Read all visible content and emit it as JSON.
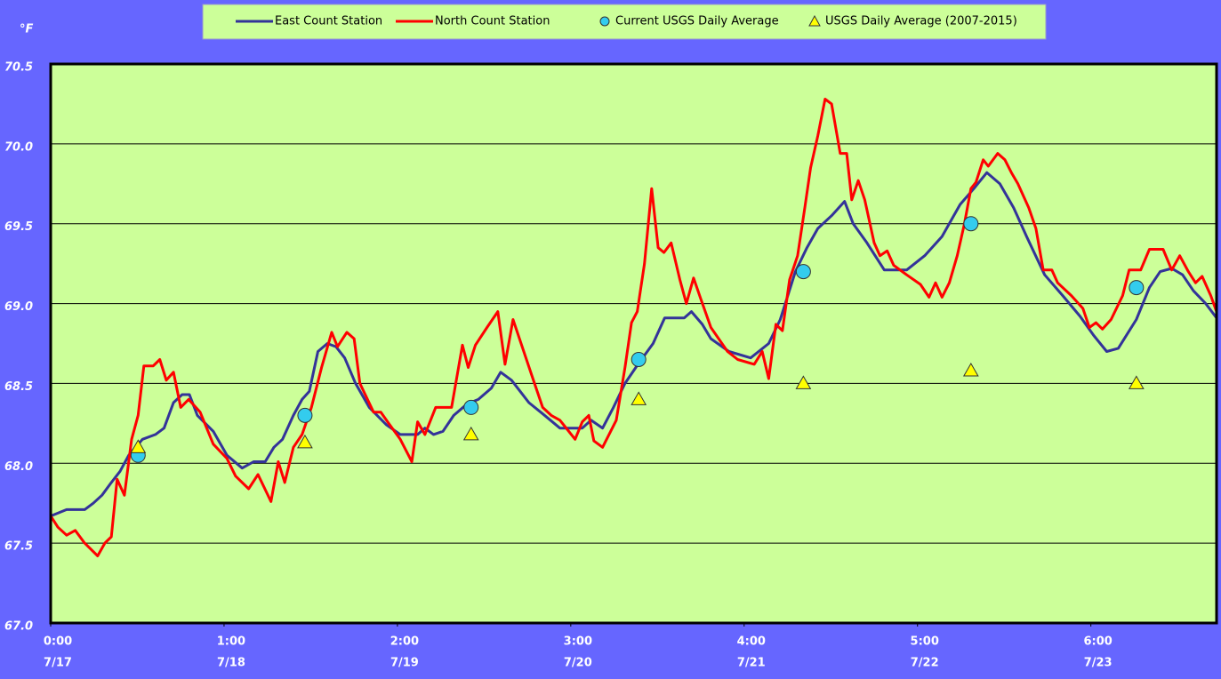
{
  "chart_data": {
    "type": "line",
    "y_unit": "°F",
    "xlim": [
      0,
      161.4
    ],
    "ylim": [
      67.0,
      70.5
    ],
    "yticks": [
      {
        "value": 67.0,
        "label": "67.0"
      },
      67.5,
      {
        "value": 68.0,
        "label": "68.0"
      },
      68.5,
      {
        "value": 69.0,
        "label": "69.0"
      },
      69.5,
      {
        "value": 70.0,
        "label": "70.0"
      },
      70.5
    ],
    "xticks": [
      {
        "value": 0,
        "label": "0:00"
      },
      {
        "value": 24,
        "label": "1:00"
      },
      {
        "value": 48,
        "label": "2:00"
      },
      {
        "value": 72,
        "label": "3:00"
      },
      {
        "value": 96,
        "label": "4:00"
      },
      {
        "value": 120,
        "label": "5:00"
      },
      {
        "value": 144,
        "label": "6:00"
      }
    ],
    "xtick_dates": [
      "7/17",
      "7/18",
      "7/19",
      "7/20",
      "7/21",
      "7/22",
      "7/23"
    ],
    "grid": true,
    "legend": "top",
    "series": [
      {
        "name": "East Count Station",
        "color": "#333399",
        "type": "line",
        "x": [
          0,
          2.2,
          4.7,
          5.9,
          7.1,
          8.4,
          9.6,
          10.8,
          12.7,
          14.5,
          15.7,
          17.0,
          18.2,
          19.2,
          20.3,
          22.5,
          24.4,
          26.5,
          28.1,
          29.7,
          30.9,
          32.1,
          33.6,
          34.8,
          35.8,
          37.0,
          38.3,
          39.5,
          40.7,
          42.2,
          44.1,
          46.5,
          48.4,
          50.8,
          51.8,
          53.0,
          54.3,
          55.8,
          57.6,
          59.2,
          61.0,
          62.3,
          63.8,
          65.0,
          66.2,
          68.1,
          70.5,
          73.6,
          74.8,
          76.4,
          77.9,
          79.5,
          81.3,
          83.4,
          85.0,
          87.7,
          88.7,
          90.2,
          91.4,
          93.9,
          96.9,
          99.4,
          101.0,
          103.1,
          104.7,
          106.2,
          108.1,
          109.9,
          111.1,
          113.0,
          115.4,
          118.5,
          121.0,
          123.4,
          125.9,
          127.8,
          129.6,
          131.4,
          133.3,
          135.1,
          137.6,
          140.1,
          142.5,
          144.4,
          146.2,
          147.8,
          150.3,
          152.1,
          153.6,
          155.2,
          156.7,
          158.2,
          159.9,
          161.4
        ],
        "values": [
          67.67,
          67.71,
          67.71,
          67.75,
          67.8,
          67.88,
          67.95,
          68.05,
          68.15,
          68.18,
          68.22,
          68.38,
          68.43,
          68.43,
          68.3,
          68.2,
          68.05,
          67.97,
          68.01,
          68.01,
          68.1,
          68.15,
          68.3,
          68.4,
          68.45,
          68.7,
          68.75,
          68.73,
          68.66,
          68.5,
          68.35,
          68.24,
          68.18,
          68.18,
          68.22,
          68.18,
          68.2,
          68.3,
          68.37,
          68.4,
          68.47,
          68.57,
          68.52,
          68.45,
          68.38,
          68.31,
          68.22,
          68.22,
          68.27,
          68.22,
          68.35,
          68.5,
          68.62,
          68.75,
          68.91,
          68.91,
          68.95,
          68.87,
          68.78,
          68.7,
          68.66,
          68.75,
          68.9,
          69.2,
          69.35,
          69.47,
          69.55,
          69.64,
          69.5,
          69.38,
          69.21,
          69.21,
          69.3,
          69.42,
          69.62,
          69.72,
          69.82,
          69.75,
          69.6,
          69.42,
          69.18,
          69.05,
          68.92,
          68.8,
          68.7,
          68.72,
          68.9,
          69.1,
          69.2,
          69.22,
          69.18,
          69.08,
          69.0,
          68.91
        ]
      },
      {
        "name": "North Count Station",
        "color": "#ff0000",
        "type": "line",
        "x": [
          0,
          1.0,
          2.2,
          3.4,
          4.7,
          6.5,
          7.5,
          8.4,
          9.2,
          10.2,
          11.2,
          12.1,
          12.9,
          14.2,
          15.1,
          16.0,
          17.0,
          18.0,
          19.1,
          20.7,
          22.5,
          24.4,
          25.6,
          27.4,
          28.7,
          30.5,
          31.5,
          32.4,
          33.6,
          34.8,
          36.1,
          37.5,
          38.9,
          39.7,
          41.0,
          42.0,
          42.8,
          44.7,
          45.7,
          46.8,
          48.4,
          50.0,
          50.8,
          51.8,
          53.3,
          55.5,
          57.0,
          57.8,
          58.8,
          60.4,
          61.9,
          62.9,
          64.0,
          66.6,
          68.1,
          69.3,
          70.5,
          72.6,
          73.6,
          74.5,
          75.2,
          76.4,
          78.3,
          79.5,
          80.4,
          81.2,
          82.2,
          83.2,
          84.1,
          84.9,
          85.9,
          87.1,
          88.0,
          89.0,
          90.0,
          91.4,
          93.7,
          95.1,
          97.4,
          98.5,
          99.4,
          100.4,
          101.3,
          102.3,
          103.4,
          104.4,
          105.2,
          106.2,
          107.2,
          108.1,
          109.3,
          110.2,
          110.9,
          111.8,
          112.7,
          114.0,
          114.8,
          115.8,
          116.7,
          118.5,
          120.4,
          121.6,
          122.5,
          123.4,
          124.4,
          125.5,
          126.5,
          127.4,
          128.1,
          129.1,
          129.8,
          131.1,
          132.1,
          133.0,
          133.9,
          135.4,
          136.4,
          137.4,
          138.6,
          139.4,
          141.3,
          142.9,
          143.8,
          144.7,
          145.6,
          146.8,
          148.4,
          149.3,
          150.9,
          152.1,
          154.0,
          155.2,
          156.3,
          157.5,
          158.5,
          159.4,
          160.6,
          161.4
        ],
        "values": [
          67.67,
          67.6,
          67.55,
          67.58,
          67.5,
          67.42,
          67.5,
          67.54,
          67.9,
          67.8,
          68.15,
          68.3,
          68.61,
          68.61,
          68.65,
          68.52,
          68.57,
          68.35,
          68.4,
          68.32,
          68.12,
          68.03,
          67.92,
          67.84,
          67.93,
          67.76,
          68.01,
          67.88,
          68.1,
          68.18,
          68.35,
          68.6,
          68.82,
          68.73,
          68.82,
          68.78,
          68.5,
          68.32,
          68.32,
          68.25,
          68.15,
          68.01,
          68.26,
          68.18,
          68.35,
          68.35,
          68.74,
          68.6,
          68.74,
          68.85,
          68.95,
          68.62,
          68.9,
          68.55,
          68.35,
          68.3,
          68.27,
          68.15,
          68.26,
          68.3,
          68.14,
          68.1,
          68.27,
          68.6,
          68.88,
          68.95,
          69.25,
          69.72,
          69.35,
          69.32,
          69.38,
          69.15,
          69.0,
          69.16,
          69.03,
          68.85,
          68.7,
          68.65,
          68.62,
          68.7,
          68.53,
          68.87,
          68.83,
          69.15,
          69.3,
          69.6,
          69.85,
          70.05,
          70.28,
          70.25,
          69.94,
          69.94,
          69.65,
          69.77,
          69.65,
          69.38,
          69.3,
          69.33,
          69.24,
          69.18,
          69.12,
          69.04,
          69.13,
          69.04,
          69.13,
          69.3,
          69.5,
          69.72,
          69.76,
          69.9,
          69.86,
          69.94,
          69.9,
          69.82,
          69.75,
          69.6,
          69.47,
          69.21,
          69.21,
          69.13,
          69.05,
          68.97,
          68.85,
          68.88,
          68.84,
          68.9,
          69.05,
          69.21,
          69.21,
          69.34,
          69.34,
          69.21,
          69.3,
          69.2,
          69.13,
          69.17,
          69.05,
          68.95
        ]
      },
      {
        "name": "Current USGS Daily Average",
        "color": "#33ccee",
        "type": "scatter",
        "marker": "circle",
        "x": [
          12.1,
          35.2,
          58.2,
          81.4,
          104.2,
          127.4,
          150.3
        ],
        "values": [
          68.05,
          68.3,
          68.35,
          68.65,
          69.2,
          69.5,
          69.1
        ]
      },
      {
        "name": "USGS Daily Average (2007-2015)",
        "color": "#ffff00",
        "type": "scatter",
        "marker": "triangle",
        "x": [
          12.1,
          35.2,
          58.2,
          81.4,
          104.2,
          127.4,
          150.3
        ],
        "values": [
          68.1,
          68.13,
          68.18,
          68.4,
          68.5,
          68.58,
          68.5
        ]
      }
    ]
  }
}
